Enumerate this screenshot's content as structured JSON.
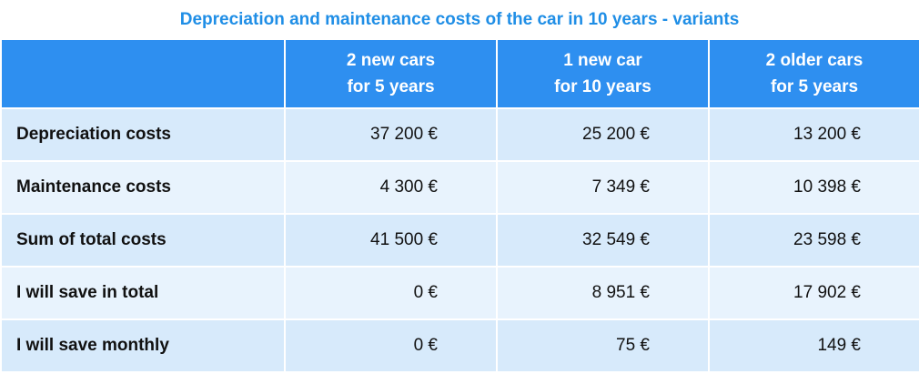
{
  "title": "Depreciation and maintenance costs of the car in 10 years - variants",
  "table": {
    "columns": [
      [
        "2 new cars",
        "for 5 years"
      ],
      [
        "1 new car",
        "for 10 years"
      ],
      [
        "2 older cars",
        "for 5 years"
      ]
    ],
    "rows": [
      [
        "Depreciation costs",
        "37 200 €",
        "25 200 €",
        "13 200 €"
      ],
      [
        "Maintenance costs",
        "4 300 €",
        "7 349 €",
        "10 398 €"
      ],
      [
        "Sum of total costs",
        "41 500 €",
        "32 549 €",
        "23 598 €"
      ],
      [
        "I will save in total",
        "0 €",
        "8 951 €",
        "17 902 €"
      ],
      [
        "I will save monthly",
        "0 €",
        "75 €",
        "149 €"
      ]
    ]
  }
}
